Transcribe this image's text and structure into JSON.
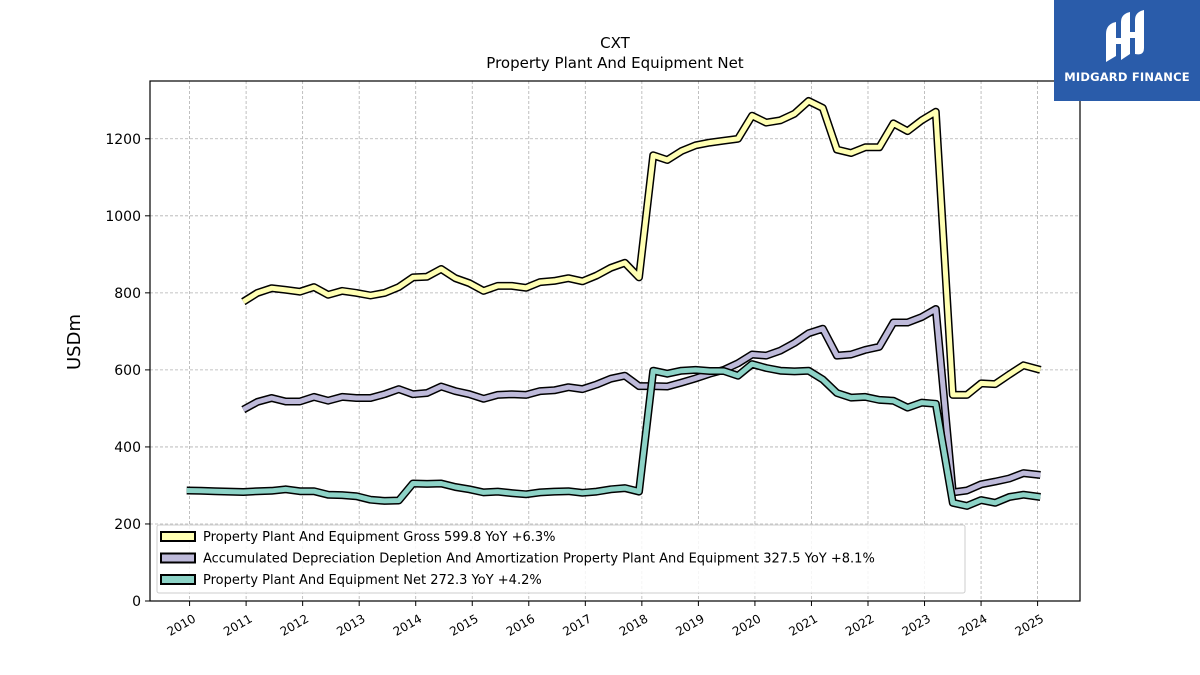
{
  "logo": {
    "text": "MIDGARD FINANCE",
    "color": "#2a5caa"
  },
  "chart_data": {
    "type": "line",
    "title": "CXT",
    "subtitle": "Property Plant And Equipment Net",
    "xlabel": "",
    "ylabel": "USDm",
    "ylim": [
      0,
      1350
    ],
    "xlim": [
      2009.3,
      2025.75
    ],
    "yticks": [
      0,
      200,
      400,
      600,
      800,
      1000,
      1200
    ],
    "xticks": [
      "2010",
      "2011",
      "2012",
      "2013",
      "2014",
      "2015",
      "2016",
      "2017",
      "2018",
      "2019",
      "2020",
      "2021",
      "2022",
      "2023",
      "2024",
      "2025"
    ],
    "grid": true,
    "legend_position": "lower-left",
    "series": [
      {
        "name": "Property Plant And Equipment Gross",
        "legend_label": "Property Plant And Equipment Gross  599.8 YoY +6.3%",
        "color": "#ffffb3",
        "x": [
          2010.95,
          2011.2,
          2011.45,
          2011.7,
          2011.95,
          2012.2,
          2012.45,
          2012.7,
          2012.95,
          2013.2,
          2013.45,
          2013.7,
          2013.95,
          2014.2,
          2014.45,
          2014.7,
          2014.95,
          2015.2,
          2015.45,
          2015.7,
          2015.95,
          2016.2,
          2016.45,
          2016.7,
          2016.95,
          2017.2,
          2017.45,
          2017.7,
          2017.95,
          2018.2,
          2018.45,
          2018.7,
          2018.95,
          2019.2,
          2019.45,
          2019.7,
          2019.95,
          2020.2,
          2020.45,
          2020.7,
          2020.95,
          2021.2,
          2021.45,
          2021.7,
          2021.95,
          2022.2,
          2022.45,
          2022.7,
          2022.95,
          2023.2,
          2023.5,
          2023.75,
          2024.0,
          2024.25,
          2024.5,
          2024.75,
          2025.05
        ],
        "values": [
          777,
          800,
          812,
          808,
          803,
          815,
          795,
          805,
          800,
          793,
          800,
          815,
          840,
          842,
          862,
          838,
          825,
          805,
          818,
          818,
          813,
          828,
          831,
          838,
          830,
          845,
          865,
          878,
          840,
          1157,
          1145,
          1168,
          1183,
          1190,
          1195,
          1200,
          1260,
          1242,
          1248,
          1265,
          1298,
          1280,
          1172,
          1163,
          1178,
          1178,
          1240,
          1220,
          1248,
          1270,
          535,
          535,
          565,
          563,
          588,
          612,
          600
        ]
      },
      {
        "name": "Accumulated Depreciation Depletion And Amortization Property Plant And Equipment",
        "legend_label": "Accumulated Depreciation Depletion And Amortization Property Plant And Equipment  327.5 YoY +8.1%",
        "color": "#bebada",
        "x": [
          2010.95,
          2011.2,
          2011.45,
          2011.7,
          2011.95,
          2012.2,
          2012.45,
          2012.7,
          2012.95,
          2013.2,
          2013.45,
          2013.7,
          2013.95,
          2014.2,
          2014.45,
          2014.7,
          2014.95,
          2015.2,
          2015.45,
          2015.7,
          2015.95,
          2016.2,
          2016.45,
          2016.7,
          2016.95,
          2017.2,
          2017.45,
          2017.7,
          2017.95,
          2018.2,
          2018.45,
          2018.7,
          2018.95,
          2019.2,
          2019.45,
          2019.7,
          2019.95,
          2020.2,
          2020.45,
          2020.7,
          2020.95,
          2021.2,
          2021.45,
          2021.7,
          2021.95,
          2022.2,
          2022.45,
          2022.7,
          2022.95,
          2023.2,
          2023.5,
          2023.75,
          2024.0,
          2024.25,
          2024.5,
          2024.75,
          2025.05
        ],
        "values": [
          497,
          517,
          527,
          518,
          518,
          530,
          520,
          530,
          527,
          527,
          537,
          550,
          537,
          540,
          557,
          545,
          537,
          525,
          535,
          537,
          535,
          545,
          547,
          555,
          550,
          562,
          577,
          585,
          558,
          558,
          557,
          567,
          578,
          590,
          600,
          617,
          640,
          637,
          650,
          670,
          695,
          707,
          637,
          640,
          652,
          660,
          723,
          723,
          737,
          758,
          282,
          287,
          303,
          310,
          318,
          332,
          327
        ]
      },
      {
        "name": "Property Plant And Equipment Net",
        "legend_label": "Property Plant And Equipment Net  272.3 YoY +4.2%",
        "color": "#8dd3c7",
        "x": [
          2009.95,
          2010.2,
          2010.45,
          2010.7,
          2010.95,
          2011.2,
          2011.45,
          2011.7,
          2011.95,
          2012.2,
          2012.45,
          2012.7,
          2012.95,
          2013.2,
          2013.45,
          2013.7,
          2013.95,
          2014.2,
          2014.45,
          2014.7,
          2014.95,
          2015.2,
          2015.45,
          2015.7,
          2015.95,
          2016.2,
          2016.45,
          2016.7,
          2016.95,
          2017.2,
          2017.45,
          2017.7,
          2017.95,
          2018.2,
          2018.45,
          2018.7,
          2018.95,
          2019.2,
          2019.45,
          2019.7,
          2019.95,
          2020.2,
          2020.45,
          2020.7,
          2020.95,
          2021.2,
          2021.45,
          2021.7,
          2021.95,
          2022.2,
          2022.45,
          2022.7,
          2022.95,
          2023.2,
          2023.5,
          2023.75,
          2024.0,
          2024.25,
          2024.5,
          2024.75,
          2025.05
        ],
        "values": [
          287,
          286,
          285,
          284,
          283,
          285,
          286,
          290,
          285,
          285,
          276,
          275,
          272,
          263,
          260,
          261,
          305,
          304,
          305,
          296,
          290,
          282,
          284,
          280,
          277,
          282,
          284,
          285,
          281,
          284,
          290,
          293,
          284,
          598,
          590,
          598,
          600,
          597,
          597,
          585,
          615,
          605,
          598,
          596,
          598,
          575,
          540,
          528,
          530,
          522,
          520,
          502,
          515,
          512,
          255,
          247,
          262,
          255,
          270,
          276,
          270
        ]
      }
    ]
  }
}
